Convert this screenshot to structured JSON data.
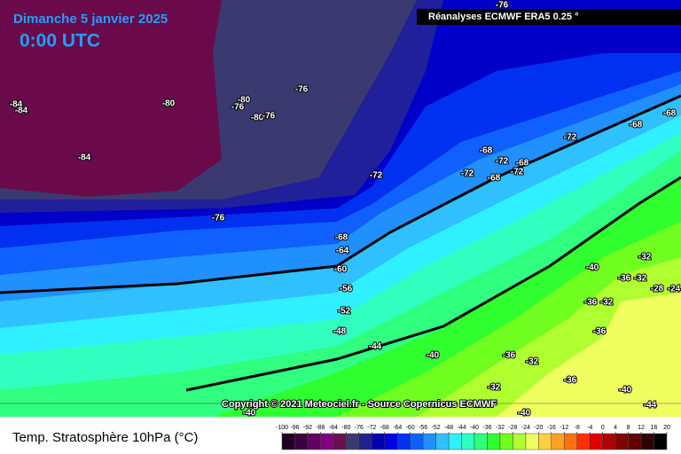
{
  "header": {
    "date": "Dimanche 5 janvier 2025",
    "time": "0:00 UTC",
    "source": "Réanalyses ECMWF ERA5 0.25 °",
    "copyright": "Copyright © 2021 Meteociel.fr - Source Copernicus ECMWF"
  },
  "footer": {
    "title": "Temp. Stratosphère 10hPa (°C)"
  },
  "map": {
    "contour_labels": [
      "-84",
      "-84",
      "-80",
      "-80",
      "-76",
      "-80",
      "-76",
      "-76",
      "-76",
      "-84",
      "-68",
      "-68",
      "-72",
      "-68",
      "-72",
      "-68",
      "-72",
      "-72",
      "-68",
      "-72",
      "-76",
      "-68",
      "-64",
      "-60",
      "-56",
      "-52",
      "-48",
      "-44",
      "-40",
      "-40",
      "-32",
      "-36",
      "-32",
      "-28",
      "-24",
      "-36",
      "-32",
      "-36",
      "-36",
      "-32",
      "-36",
      "-32",
      "-40",
      "-44",
      "-40",
      "-40"
    ]
  },
  "colorbar": {
    "ticks": [
      -100,
      -96,
      -92,
      -88,
      -84,
      -80,
      -76,
      -72,
      -68,
      -64,
      -60,
      -56,
      -52,
      -48,
      -44,
      -40,
      -36,
      -32,
      -28,
      -24,
      -20,
      -16,
      -12,
      -8,
      -4,
      0,
      4,
      8,
      12,
      16,
      20
    ],
    "colors": [
      "#1e0020",
      "#3a0040",
      "#600060",
      "#800080",
      "#6a1050",
      "#3a3a70",
      "#202090",
      "#0000b0",
      "#0000e0",
      "#0030f0",
      "#1060ff",
      "#2090ff",
      "#30c0ff",
      "#30f0ff",
      "#30ffc0",
      "#30ff80",
      "#30ff30",
      "#70ff20",
      "#b0ff30",
      "#f0ff60",
      "#ffd040",
      "#ffa020",
      "#ff7010",
      "#ff3000",
      "#e00000",
      "#b00000",
      "#800000",
      "#600000",
      "#300000",
      "#000000"
    ]
  }
}
